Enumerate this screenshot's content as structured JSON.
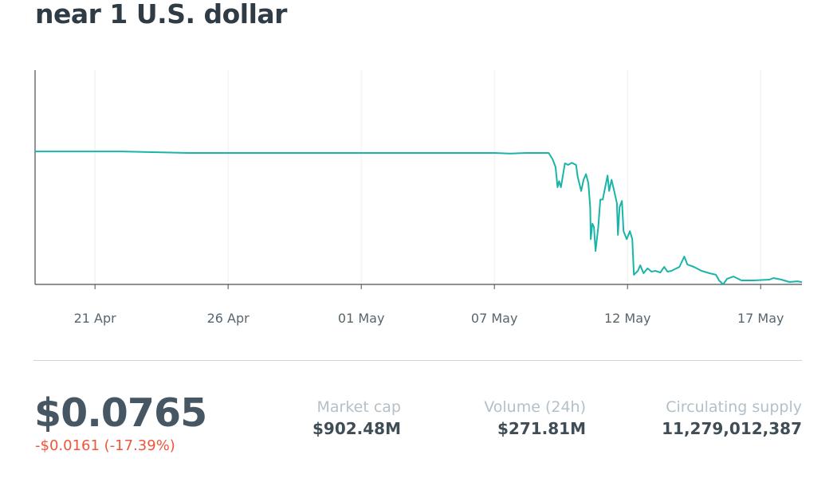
{
  "title": "near 1 U.S. dollar",
  "price": "$0.0765",
  "change": "-$0.0161 (-17.39%)",
  "stats": [
    {
      "label": "Market cap",
      "value": "$902.48M"
    },
    {
      "label": "Volume (24h)",
      "value": "$271.81M"
    },
    {
      "label": "Circulating supply",
      "value": "11,279,012,387"
    }
  ],
  "colors": {
    "line": "#19b5a8",
    "negative": "#f0553a"
  },
  "chart_data": {
    "type": "line",
    "title": "near 1 U.S. dollar",
    "xlabel": "",
    "ylabel": "",
    "x_unit": "day index (1 = 1 Apr)",
    "xlim": [
      18.75,
      47.55
    ],
    "ylim": [
      0.06,
      1.575
    ],
    "grid": "vertical",
    "ticks": [
      {
        "x": 21,
        "label": "21 Apr"
      },
      {
        "x": 26,
        "label": "26 Apr"
      },
      {
        "x": 31,
        "label": "01 May"
      },
      {
        "x": 36,
        "label": "07 May"
      },
      {
        "x": 41,
        "label": "12 May"
      },
      {
        "x": 46,
        "label": "17 May"
      }
    ],
    "series": [
      {
        "name": "price",
        "points": [
          [
            18.75,
            1.0
          ],
          [
            22,
            1.0
          ],
          [
            24.5,
            0.989
          ],
          [
            36.0,
            0.989
          ],
          [
            36.6,
            0.985
          ],
          [
            37.2,
            0.989
          ],
          [
            38.04,
            0.989
          ],
          [
            38.19,
            0.944
          ],
          [
            38.3,
            0.888
          ],
          [
            38.37,
            0.747
          ],
          [
            38.43,
            0.79
          ],
          [
            38.5,
            0.747
          ],
          [
            38.6,
            0.86
          ],
          [
            38.65,
            0.916
          ],
          [
            38.77,
            0.905
          ],
          [
            38.9,
            0.92
          ],
          [
            39.07,
            0.905
          ],
          [
            39.13,
            0.82
          ],
          [
            39.26,
            0.72
          ],
          [
            39.35,
            0.8
          ],
          [
            39.44,
            0.84
          ],
          [
            39.53,
            0.775
          ],
          [
            39.6,
            0.606
          ],
          [
            39.62,
            0.38
          ],
          [
            39.68,
            0.49
          ],
          [
            39.74,
            0.465
          ],
          [
            39.8,
            0.296
          ],
          [
            39.9,
            0.465
          ],
          [
            39.98,
            0.66
          ],
          [
            40.07,
            0.66
          ],
          [
            40.16,
            0.747
          ],
          [
            40.25,
            0.83
          ],
          [
            40.31,
            0.72
          ],
          [
            40.4,
            0.8
          ],
          [
            40.5,
            0.72
          ],
          [
            40.6,
            0.634
          ],
          [
            40.64,
            0.41
          ],
          [
            40.7,
            0.606
          ],
          [
            40.79,
            0.65
          ],
          [
            40.85,
            0.437
          ],
          [
            40.97,
            0.38
          ],
          [
            41.09,
            0.437
          ],
          [
            41.18,
            0.38
          ],
          [
            41.24,
            0.128
          ],
          [
            41.39,
            0.156
          ],
          [
            41.48,
            0.195
          ],
          [
            41.6,
            0.139
          ],
          [
            41.75,
            0.173
          ],
          [
            41.9,
            0.15
          ],
          [
            42.05,
            0.156
          ],
          [
            42.23,
            0.144
          ],
          [
            42.38,
            0.184
          ],
          [
            42.5,
            0.15
          ],
          [
            42.65,
            0.156
          ],
          [
            42.95,
            0.184
          ],
          [
            43.13,
            0.257
          ],
          [
            43.25,
            0.2
          ],
          [
            43.49,
            0.184
          ],
          [
            43.78,
            0.156
          ],
          [
            44.08,
            0.139
          ],
          [
            44.32,
            0.128
          ],
          [
            44.44,
            0.088
          ],
          [
            44.59,
            0.06
          ],
          [
            44.74,
            0.1
          ],
          [
            44.98,
            0.116
          ],
          [
            45.28,
            0.088
          ],
          [
            45.73,
            0.088
          ],
          [
            46.33,
            0.094
          ],
          [
            46.48,
            0.105
          ],
          [
            46.78,
            0.094
          ],
          [
            47.08,
            0.077
          ],
          [
            47.38,
            0.082
          ],
          [
            47.55,
            0.0765
          ]
        ]
      }
    ]
  }
}
